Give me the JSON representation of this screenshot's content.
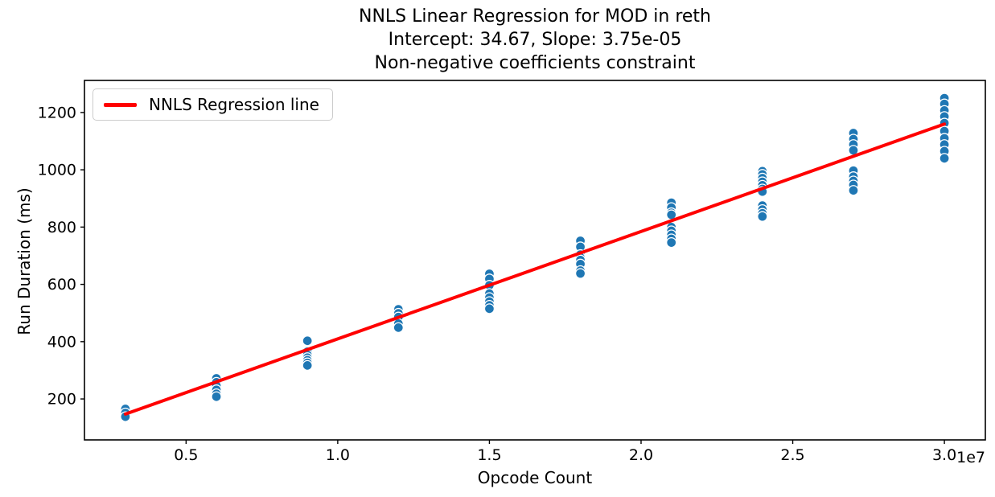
{
  "chart_data": {
    "type": "scatter",
    "title_lines": [
      "NNLS Linear Regression for MOD in reth",
      "Intercept: 34.67, Slope: 3.75e-05",
      "Non-negative coefficients constraint"
    ],
    "xlabel": "Opcode Count",
    "ylabel": "Run Duration (ms)",
    "x_axis_multiplier_label": "1e7",
    "xlim": [
      1650000,
      31350000
    ],
    "ylim": [
      57,
      1312
    ],
    "grid": false,
    "xticks": [
      {
        "value": 5000000,
        "label": "0.5"
      },
      {
        "value": 10000000,
        "label": "1.0"
      },
      {
        "value": 15000000,
        "label": "1.5"
      },
      {
        "value": 20000000,
        "label": "2.0"
      },
      {
        "value": 25000000,
        "label": "2.5"
      },
      {
        "value": 30000000,
        "label": "3.0"
      }
    ],
    "yticks": [
      {
        "value": 200,
        "label": "200"
      },
      {
        "value": 400,
        "label": "400"
      },
      {
        "value": 600,
        "label": "600"
      },
      {
        "value": 800,
        "label": "800"
      },
      {
        "value": 1000,
        "label": "1000"
      },
      {
        "value": 1200,
        "label": "1200"
      }
    ],
    "legend": {
      "position": "upper left",
      "entries": [
        {
          "label": "NNLS Regression line",
          "type": "line",
          "color": "#ff0000"
        }
      ]
    },
    "regression": {
      "intercept": 34.67,
      "slope": 3.75e-05,
      "x_start": 3000000,
      "x_end": 30000000,
      "color": "#ff0000",
      "line_width": 4
    },
    "scatter_style": {
      "marker_color": "#1f77b4",
      "marker_edge_color": "#ffffff",
      "marker_radius": 6
    },
    "clusters": [
      {
        "x": 3000000,
        "durations": [
          165,
          151,
          138
        ]
      },
      {
        "x": 6000000,
        "durations": [
          272,
          258,
          246,
          232,
          218,
          208
        ]
      },
      {
        "x": 9000000,
        "durations": [
          403,
          365,
          354,
          344,
          335,
          326,
          317
        ]
      },
      {
        "x": 12000000,
        "durations": [
          513,
          499,
          486,
          463,
          449
        ]
      },
      {
        "x": 15000000,
        "durations": [
          637,
          619,
          597,
          568,
          554,
          540,
          527,
          515
        ]
      },
      {
        "x": 18000000,
        "durations": [
          752,
          731,
          704,
          694,
          685,
          671,
          648,
          638
        ]
      },
      {
        "x": 21000000,
        "durations": [
          885,
          868,
          850,
          843,
          800,
          787,
          773,
          759,
          746
        ]
      },
      {
        "x": 24000000,
        "durations": [
          995,
          984,
          971,
          958,
          946,
          933,
          924,
          875,
          861,
          848,
          837
        ]
      },
      {
        "x": 27000000,
        "durations": [
          1128,
          1107,
          1088,
          1068,
          997,
          976,
          961,
          947,
          928
        ]
      },
      {
        "x": 30000000,
        "durations": [
          1250,
          1230,
          1207,
          1186,
          1163,
          1135,
          1110,
          1088,
          1065,
          1040
        ]
      }
    ]
  }
}
